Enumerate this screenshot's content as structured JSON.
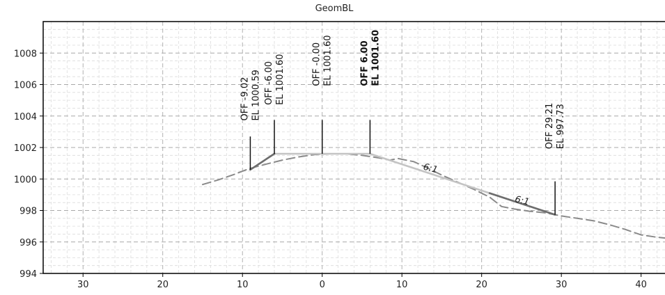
{
  "chart_data": {
    "type": "line",
    "title": "GeomBL",
    "xlabel": "",
    "ylabel": "",
    "x_reversed": true,
    "xlim": [
      35,
      -43
    ],
    "ylim": [
      994,
      1010
    ],
    "x_ticks": [
      30,
      20,
      10,
      0,
      -10,
      -20,
      -30,
      -40
    ],
    "x_tick_labels": [
      "30",
      "20",
      "10",
      "0",
      "10",
      "20",
      "30",
      "40"
    ],
    "y_ticks": [
      994,
      996,
      998,
      1000,
      1002,
      1004,
      1006,
      1008
    ],
    "y_tick_labels": [
      "994",
      "996",
      "998",
      "1000",
      "1002",
      "1004",
      "1006",
      "1008"
    ],
    "grid": true,
    "series": [
      {
        "role": "existing-ground",
        "style": "dashed",
        "color": "#8a8a8a",
        "points": [
          [
            15.0,
            999.65
          ],
          [
            13.0,
            999.95
          ],
          [
            11.0,
            1000.3
          ],
          [
            9.2,
            1000.65
          ],
          [
            7.0,
            1000.95
          ],
          [
            5.0,
            1001.2
          ],
          [
            3.0,
            1001.4
          ],
          [
            1.0,
            1001.55
          ],
          [
            -1.0,
            1001.6
          ],
          [
            -3.0,
            1001.6
          ],
          [
            -5.0,
            1001.5
          ],
          [
            -7.0,
            1001.35
          ],
          [
            -8.5,
            1001.2
          ],
          [
            -9.5,
            1001.3
          ],
          [
            -10.5,
            1001.2
          ],
          [
            -11.5,
            1001.1
          ],
          [
            -13.0,
            1000.75
          ],
          [
            -15.0,
            1000.25
          ],
          [
            -17.0,
            999.8
          ],
          [
            -19.0,
            999.35
          ],
          [
            -21.0,
            998.85
          ],
          [
            -22.5,
            998.25
          ],
          [
            -24.0,
            998.1
          ],
          [
            -26.0,
            997.95
          ],
          [
            -28.0,
            997.85
          ],
          [
            -30.0,
            997.65
          ],
          [
            -32.0,
            997.5
          ],
          [
            -34.0,
            997.35
          ],
          [
            -36.0,
            997.1
          ],
          [
            -38.0,
            996.8
          ],
          [
            -40.0,
            996.45
          ],
          [
            -42.0,
            996.3
          ],
          [
            -43.0,
            996.25
          ]
        ]
      },
      {
        "role": "design-surface",
        "style": "solid",
        "color": "#c4c4c4",
        "points": [
          [
            9.02,
            1000.59
          ],
          [
            6.0,
            1001.6
          ],
          [
            0.0,
            1001.6
          ],
          [
            -6.0,
            1001.6
          ],
          [
            -21.0,
            999.1
          ],
          [
            -29.21,
            997.73
          ]
        ]
      },
      {
        "role": "left-slope-line",
        "style": "solid",
        "color": "#6d6d6d",
        "points": [
          [
            9.02,
            1000.59
          ],
          [
            6.0,
            1001.6
          ]
        ]
      },
      {
        "role": "right-slope-line",
        "style": "solid",
        "color": "#6d6d6d",
        "points": [
          [
            -21.0,
            999.1
          ],
          [
            -29.21,
            997.73
          ]
        ]
      }
    ],
    "markers": [
      {
        "x": 9.02,
        "y_bottom": 1000.59,
        "y_top": 1002.7
      },
      {
        "x": 6.0,
        "y_bottom": 1001.6,
        "y_top": 1003.75
      },
      {
        "x": 0.0,
        "y_bottom": 1001.6,
        "y_top": 1003.75
      },
      {
        "x": -6.0,
        "y_bottom": 1001.6,
        "y_top": 1003.75
      },
      {
        "x": -29.21,
        "y_bottom": 997.73,
        "y_top": 999.85
      }
    ],
    "annotations": [
      {
        "x": 9.02,
        "y": 1003.7,
        "lines": [
          "OFF -9.02",
          "EL 1000.59"
        ],
        "bold": false
      },
      {
        "x": 6.0,
        "y": 1004.7,
        "lines": [
          "OFF -6.00",
          "EL 1001.60"
        ],
        "bold": false
      },
      {
        "x": 0.0,
        "y": 1005.9,
        "lines": [
          "OFF -0.00",
          "EL 1001.60"
        ],
        "bold": false
      },
      {
        "x": -6.0,
        "y": 1005.9,
        "lines": [
          "OFF 6.00",
          "EL 1001.60"
        ],
        "bold": true
      },
      {
        "x": -29.21,
        "y": 1001.9,
        "lines": [
          "OFF 29.21",
          "EL 997.73"
        ],
        "bold": false
      }
    ],
    "slope_labels": [
      {
        "text": "6:1",
        "x": -13.5,
        "y": 1000.5,
        "angle": 14
      },
      {
        "text": "6:1",
        "x": -25.0,
        "y": 998.45,
        "angle": 13
      }
    ]
  }
}
